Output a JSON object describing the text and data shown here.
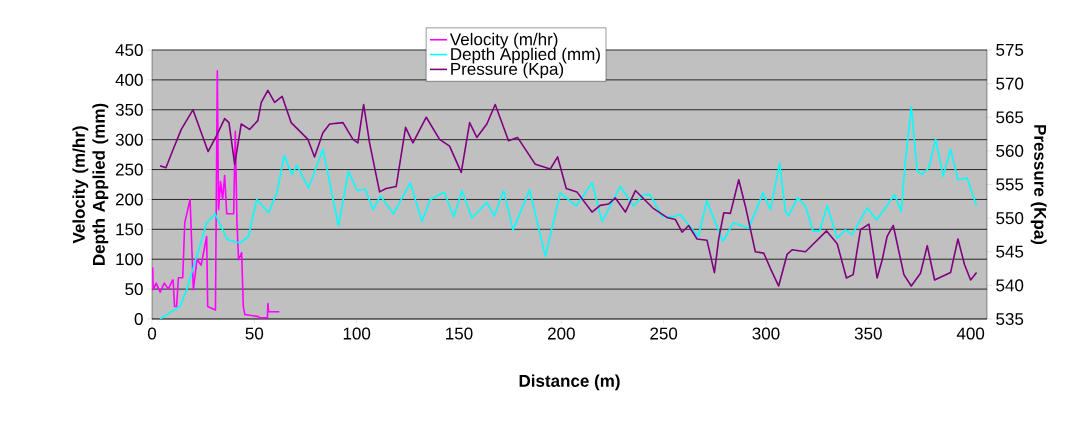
{
  "chart_data": {
    "type": "line",
    "xlabel": "Distance (m)",
    "ylabel": "Velocity (m/hr) Depth Applied (mm)",
    "y2label": "Pressure (Kpa)",
    "xlim": [
      0,
      408
    ],
    "ylim": [
      0,
      450
    ],
    "y2lim": [
      535,
      575
    ],
    "xticks": [
      0,
      50,
      100,
      150,
      200,
      250,
      300,
      350,
      400
    ],
    "yticks": [
      0,
      50,
      100,
      150,
      200,
      250,
      300,
      350,
      400,
      450
    ],
    "y2ticks": [
      535,
      540,
      545,
      550,
      555,
      560,
      565,
      570,
      575
    ],
    "grid": "y",
    "legend": "top",
    "marker": "none",
    "line_style": "solid",
    "series": [
      {
        "name": "Velocity (m/hr)",
        "color": "#ff00ff",
        "x": [
          0.3,
          0.6,
          2,
          4,
          6,
          8,
          10,
          10.3,
          11,
          12,
          12.9,
          15,
          16,
          18.6,
          20.2,
          22,
          24,
          26.7,
          27.2,
          31,
          31.9,
          32.5,
          33.5,
          34.5,
          35.5,
          36.5,
          39.9,
          40.7,
          41.5,
          42.3,
          43.8,
          44.6,
          45.4,
          46.3,
          52,
          52.8,
          56.4,
          56.6,
          57,
          62.2
        ],
        "values": [
          86,
          49,
          60,
          45,
          60,
          50,
          65,
          65,
          21,
          21,
          69,
          69,
          161,
          200,
          49,
          100,
          90,
          138,
          21,
          15,
          415,
          183,
          230,
          200,
          240,
          176,
          176,
          314,
          161,
          99,
          111,
          21,
          7,
          7,
          4,
          2,
          2,
          26,
          12,
          12
        ]
      },
      {
        "name": "Depth Applied (mm)",
        "color": "#00ffff",
        "x": [
          3.9,
          13.7,
          16.9,
          22.6,
          26.7,
          30.8,
          36.8,
          43,
          47.1,
          51.2,
          56.9,
          61,
          64.6,
          68.3,
          70.8,
          76.5,
          83.5,
          91.1,
          96,
          100.2,
          104.2,
          108,
          111.5,
          118,
          126.2,
          131.9,
          136,
          142.8,
          147.4,
          151.5,
          156.3,
          163.6,
          167.2,
          171.8,
          176.4,
          184.5,
          192.2,
          199.5,
          207.3,
          215,
          219.9,
          228.8,
          235.3,
          240.2,
          243.4,
          249.1,
          254.8,
          258.1,
          262.1,
          267,
          271.1,
          278.9,
          284.1,
          291.6,
          298.6,
          302.2,
          306.7,
          309.5,
          311.1,
          315.5,
          319.3,
          323,
          326.3,
          329.9,
          334.8,
          338.8,
          342.1,
          349.4,
          354,
          358.4,
          362.8,
          366.1,
          368.2,
          371,
          373.9,
          376.3,
          379.6,
          382.9,
          386.6,
          390.2,
          393.8,
          398.3,
          402.9
        ],
        "values": [
          0,
          21,
          49,
          113,
          161,
          176,
          133,
          127,
          138,
          200,
          178,
          211,
          274,
          242,
          257,
          219,
          284,
          156,
          247,
          215,
          217,
          183,
          206,
          176,
          228,
          163,
          200,
          212,
          171,
          215,
          169,
          195,
          172,
          215,
          149,
          216,
          105,
          211,
          189,
          228,
          163,
          222,
          189,
          208,
          208,
          172,
          171,
          175,
          158,
          138,
          198,
          130,
          161,
          152,
          211,
          183,
          261,
          180,
          173,
          203,
          189,
          147,
          147,
          190,
          135,
          149,
          141,
          186,
          166,
          186,
          208,
          180,
          267,
          355,
          247,
          242,
          253,
          301,
          239,
          284,
          233,
          236,
          189
        ]
      },
      {
        "name": "Pressure (Kpa)",
        "color": "#800080",
        "axis": "y2",
        "x": [
          3.9,
          6.8,
          10.3,
          14.3,
          20,
          27.4,
          31.4,
          35.5,
          37.6,
          40.4,
          43.6,
          47.7,
          51.7,
          53.4,
          56.6,
          59.9,
          63.6,
          68,
          76.2,
          79.4,
          83.5,
          86.8,
          93.3,
          98.2,
          100.6,
          103.4,
          106.3,
          111.2,
          114.4,
          119.3,
          123.9,
          127.5,
          134,
          140.5,
          145.4,
          151.1,
          155.2,
          158.7,
          163.6,
          167.7,
          174.2,
          178.6,
          187.3,
          194.6,
          198.2,
          202.4,
          207.6,
          215,
          219,
          223.1,
          226.4,
          231.3,
          236.2,
          245.1,
          251.6,
          255.7,
          259,
          262.2,
          266.3,
          271.2,
          274.8,
          276.9,
          279.4,
          282.6,
          286.7,
          290,
          294.8,
          298.9,
          302.2,
          306.2,
          310.3,
          312.8,
          319.3,
          329.6,
          334.8,
          339.3,
          342.6,
          346.2,
          350.3,
          354.3,
          356.8,
          359.2,
          362.2,
          367.4,
          371,
          375.5,
          378.8,
          382.4,
          390.2,
          393.8,
          397,
          400,
          402.9
        ],
        "values": [
          557.8,
          557.5,
          560.2,
          563.2,
          566.1,
          559.9,
          562.2,
          564.8,
          564.2,
          558,
          564,
          563.2,
          564.5,
          567.2,
          569,
          567.2,
          568.1,
          564.2,
          561.7,
          559.1,
          562.7,
          564,
          564.2,
          561.7,
          561.2,
          566.9,
          561.2,
          553.9,
          554.4,
          554.7,
          563.5,
          561.2,
          565,
          561.7,
          560.7,
          556.8,
          564.2,
          562,
          564,
          566.9,
          561.5,
          562,
          558,
          557.3,
          559.1,
          554.4,
          553.9,
          550.9,
          551.9,
          552.1,
          553,
          550.9,
          554.1,
          551.4,
          550.1,
          549.8,
          547.9,
          548.9,
          546.9,
          546.7,
          541.9,
          546.9,
          550.8,
          550.7,
          555.7,
          551.7,
          545,
          544.8,
          542.5,
          539.9,
          544.6,
          545.3,
          545,
          548.1,
          546.2,
          541.1,
          541.6,
          548.3,
          549.1,
          541.1,
          543.8,
          547.3,
          548.9,
          541.6,
          539.9,
          541.8,
          545.9,
          540.8,
          541.9,
          546.9,
          543.1,
          540.8,
          541.9
        ]
      }
    ]
  }
}
